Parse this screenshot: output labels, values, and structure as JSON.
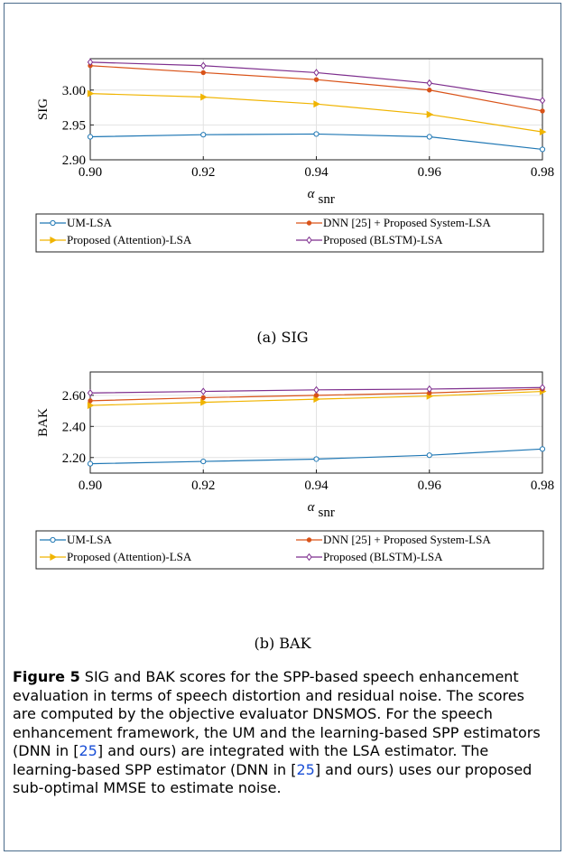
{
  "chart_data": [
    {
      "type": "line",
      "x": [
        0.9,
        0.92,
        0.94,
        0.96,
        0.98
      ],
      "xlabel": "α",
      "xlabel_sub": "snr",
      "ylabel": "SIG",
      "ylim": [
        2.9,
        3.045
      ],
      "xlim": [
        0.9,
        0.98
      ],
      "xticks": [
        "0.90",
        "0.92",
        "0.94",
        "0.96",
        "0.98"
      ],
      "yticks": [
        2.9,
        2.95,
        3.0
      ],
      "ytick_labels": [
        "2.90",
        "2.95",
        "3.00"
      ],
      "grid": true,
      "legend_position": "below",
      "series": [
        {
          "name": "UM-LSA",
          "color": "#1f77b4",
          "marker": "circle",
          "values": [
            2.933,
            2.936,
            2.937,
            2.933,
            2.915
          ]
        },
        {
          "name": "Proposed (Attention)-LSA",
          "color": "#f0b400",
          "marker": "triangle-right",
          "values": [
            2.995,
            2.99,
            2.98,
            2.965,
            2.94
          ]
        },
        {
          "name": "DNN [25] + Proposed System-LSA",
          "color": "#d95319",
          "marker": "dot",
          "values": [
            3.035,
            3.025,
            3.015,
            3.0,
            2.97
          ]
        },
        {
          "name": "Proposed (BLSTM)-LSA",
          "color": "#7e2f8e",
          "marker": "diamond",
          "values": [
            3.04,
            3.035,
            3.025,
            3.01,
            2.985
          ]
        }
      ],
      "caption": "(a) SIG"
    },
    {
      "type": "line",
      "x": [
        0.9,
        0.92,
        0.94,
        0.96,
        0.98
      ],
      "xlabel": "α",
      "xlabel_sub": "snr",
      "ylabel": "BAK",
      "ylim": [
        2.1,
        2.75
      ],
      "xlim": [
        0.9,
        0.98
      ],
      "xticks": [
        "0.90",
        "0.92",
        "0.94",
        "0.96",
        "0.98"
      ],
      "yticks": [
        2.2,
        2.4,
        2.6
      ],
      "ytick_labels": [
        "2.20",
        "2.40",
        "2.60"
      ],
      "grid": true,
      "legend_position": "below",
      "series": [
        {
          "name": "UM-LSA",
          "color": "#1f77b4",
          "marker": "circle",
          "values": [
            2.16,
            2.175,
            2.19,
            2.215,
            2.255
          ]
        },
        {
          "name": "Proposed (Attention)-LSA",
          "color": "#f0b400",
          "marker": "triangle-right",
          "values": [
            2.535,
            2.555,
            2.575,
            2.595,
            2.625
          ]
        },
        {
          "name": "DNN [25] + Proposed System-LSA",
          "color": "#d95319",
          "marker": "dot",
          "values": [
            2.565,
            2.585,
            2.6,
            2.615,
            2.64
          ]
        },
        {
          "name": "Proposed (BLSTM)-LSA",
          "color": "#7e2f8e",
          "marker": "diamond",
          "values": [
            2.615,
            2.625,
            2.635,
            2.64,
            2.65
          ]
        }
      ],
      "caption": "(b) BAK"
    }
  ],
  "figure_caption": {
    "label": "Figure 5",
    "part1": " SIG and BAK scores for the SPP-based speech enhancement evaluation in terms of speech distortion and residual noise. The scores are computed by the objective evaluator DNSMOS. For the speech enhancement framework, the UM and the learning-based SPP estimators (DNN in [",
    "cite1": "25",
    "part2": "] and ours) are integrated with the LSA estimator. The learning-based SPP estimator (DNN in [",
    "cite2": "25",
    "part3": "] and ours) uses our proposed sub-optimal MMSE to estimate noise."
  }
}
